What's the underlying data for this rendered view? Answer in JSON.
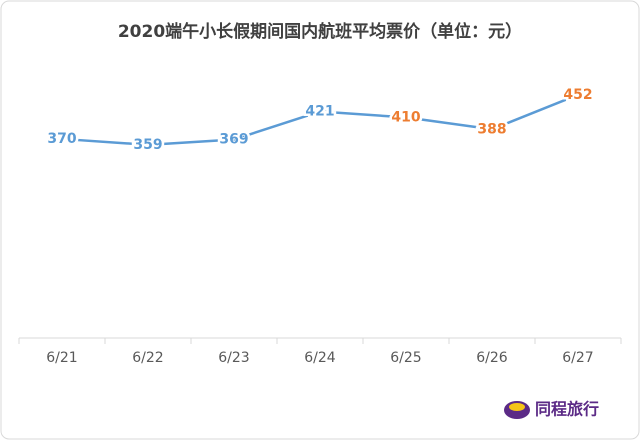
{
  "chart_data": {
    "type": "line",
    "title": "2020端午小长假期间国内航班平均票价（单位：元）",
    "categories": [
      "6/21",
      "6/22",
      "6/23",
      "6/24",
      "6/25",
      "6/26",
      "6/27"
    ],
    "series": [
      {
        "color": "#5b9bd5",
        "values": [
          370,
          359,
          369,
          421,
          410,
          388,
          452
        ]
      }
    ],
    "label_colors": [
      "#5b9bd5",
      "#5b9bd5",
      "#5b9bd5",
      "#5b9bd5",
      "#ed7d31",
      "#ed7d31",
      "#ed7d31"
    ],
    "ylim": [
      0,
      500
    ],
    "watermark": "同程旅行"
  }
}
